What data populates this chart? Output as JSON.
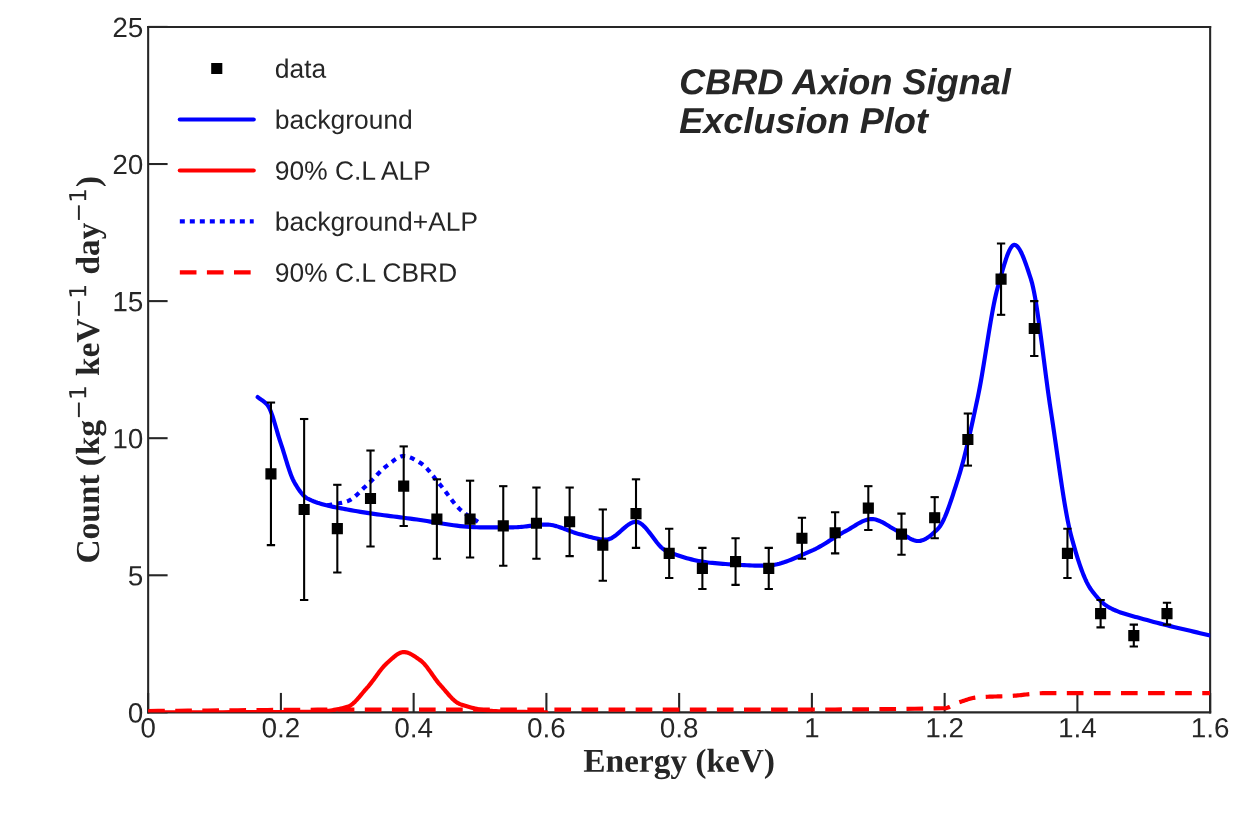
{
  "chart_data": {
    "type": "line",
    "title": "CBRD Axion Signal\nExclusion Plot",
    "xlabel": "Energy (keV)",
    "ylabel": "Count (kg$^{−1}$ keV$^{−1}$ day$^{−1}$)",
    "xlim": [
      0,
      1.6
    ],
    "ylim": [
      0,
      25
    ],
    "xticks": [
      0,
      0.2,
      0.4,
      0.6,
      0.8,
      1,
      1.2,
      1.4,
      1.6
    ],
    "yticks": [
      0,
      5,
      10,
      15,
      20,
      25
    ],
    "legend": "top left",
    "grid": false,
    "series": [
      {
        "name": "data",
        "type": "scatter",
        "marker": "square",
        "color": "#000000",
        "x": [
          0.185,
          0.235,
          0.285,
          0.335,
          0.385,
          0.435,
          0.485,
          0.535,
          0.585,
          0.635,
          0.685,
          0.735,
          0.785,
          0.835,
          0.885,
          0.935,
          0.985,
          1.035,
          1.085,
          1.135,
          1.185,
          1.235,
          1.285,
          1.335,
          1.385,
          1.435,
          1.485,
          1.535
        ],
        "values": [
          8.7,
          7.4,
          6.7,
          7.8,
          8.25,
          7.05,
          7.05,
          6.8,
          6.9,
          6.95,
          6.1,
          7.25,
          5.8,
          5.25,
          5.5,
          5.25,
          6.35,
          6.55,
          7.45,
          6.5,
          7.1,
          9.95,
          15.8,
          14.0,
          5.8,
          3.6,
          2.8,
          3.6
        ],
        "errors": [
          2.6,
          3.3,
          1.6,
          1.75,
          1.45,
          1.45,
          1.4,
          1.45,
          1.3,
          1.25,
          1.3,
          1.25,
          0.9,
          0.75,
          0.85,
          0.75,
          0.75,
          0.75,
          0.8,
          0.75,
          0.75,
          0.95,
          1.3,
          1.0,
          0.9,
          0.5,
          0.4,
          0.4
        ]
      },
      {
        "name": "background",
        "type": "line",
        "line_style": "solid",
        "color": "#0000ff",
        "x": [
          0.165,
          0.18,
          0.2,
          0.22,
          0.24,
          0.3,
          0.4,
          0.5,
          0.55,
          0.6,
          0.65,
          0.69,
          0.735,
          0.78,
          0.85,
          0.93,
          1.0,
          1.05,
          1.09,
          1.13,
          1.16,
          1.19,
          1.22,
          1.25,
          1.28,
          1.305,
          1.33,
          1.36,
          1.39,
          1.42,
          1.45,
          1.5,
          1.6
        ],
        "values": [
          11.5,
          11.2,
          9.8,
          8.4,
          7.8,
          7.4,
          7.05,
          6.75,
          6.75,
          6.85,
          6.5,
          6.3,
          6.95,
          5.9,
          5.45,
          5.35,
          5.9,
          6.6,
          7.05,
          6.6,
          6.25,
          6.7,
          8.5,
          11.5,
          15.5,
          17.05,
          15.8,
          11.0,
          6.5,
          4.5,
          3.8,
          3.4,
          2.8
        ]
      },
      {
        "name": "90% C.L ALP",
        "type": "line",
        "line_style": "solid",
        "color": "#ff0000",
        "x": [
          0,
          0.25,
          0.3,
          0.33,
          0.36,
          0.385,
          0.41,
          0.44,
          0.47,
          0.52,
          0.6
        ],
        "values": [
          0,
          0.02,
          0.2,
          0.9,
          1.8,
          2.2,
          1.9,
          1.0,
          0.3,
          0.05,
          0
        ]
      },
      {
        "name": "background+ALP",
        "type": "line",
        "line_style": "dotted",
        "color": "#0000ff",
        "x": [
          0.27,
          0.3,
          0.33,
          0.36,
          0.385,
          0.41,
          0.44,
          0.47,
          0.5
        ],
        "values": [
          7.55,
          7.7,
          8.3,
          9.0,
          9.35,
          9.1,
          8.3,
          7.4,
          6.9
        ]
      },
      {
        "name": "90% C.L CBRD",
        "type": "line",
        "line_style": "dashed",
        "color": "#ff0000",
        "x": [
          0,
          0.3,
          0.6,
          0.9,
          1.2,
          1.22,
          1.25,
          1.3,
          1.35,
          1.6
        ],
        "values": [
          0.05,
          0.1,
          0.1,
          0.1,
          0.15,
          0.35,
          0.55,
          0.6,
          0.7,
          0.7
        ]
      }
    ]
  }
}
